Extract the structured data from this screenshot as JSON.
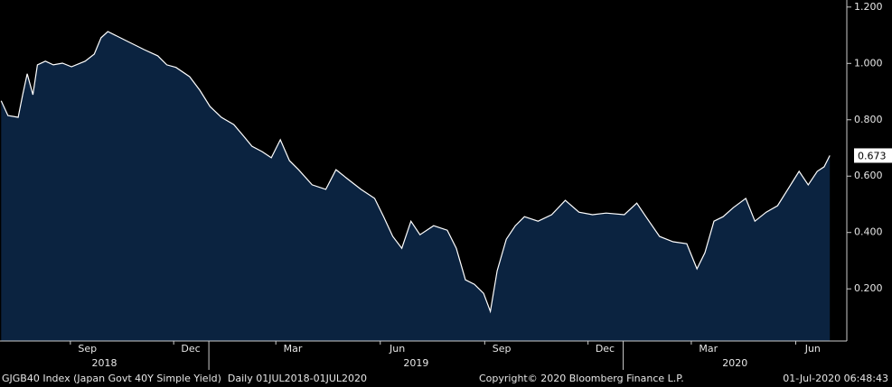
{
  "chart_data": {
    "type": "area",
    "series": [
      {
        "name": "GJGB40 Index",
        "color": "#ffffff",
        "fill": "#0b2340",
        "x": [
          "2018-07-02",
          "2018-07-08",
          "2018-07-17",
          "2018-07-21",
          "2018-07-25",
          "2018-07-30",
          "2018-08-03",
          "2018-08-10",
          "2018-08-17",
          "2018-08-25",
          "2018-09-02",
          "2018-09-14",
          "2018-09-22",
          "2018-09-28",
          "2018-10-04",
          "2018-10-12",
          "2018-10-20",
          "2018-10-28",
          "2018-11-05",
          "2018-11-17",
          "2018-11-25",
          "2018-12-03",
          "2018-12-15",
          "2018-12-24",
          "2019-01-02",
          "2019-01-12",
          "2019-01-23",
          "2019-01-31",
          "2019-02-08",
          "2019-02-17",
          "2019-02-25",
          "2019-03-05",
          "2019-03-13",
          "2019-03-21",
          "2019-04-02",
          "2019-04-14",
          "2019-04-23",
          "2019-05-03",
          "2019-05-15",
          "2019-05-27",
          "2019-06-04",
          "2019-06-12",
          "2019-06-20",
          "2019-06-28",
          "2019-07-06",
          "2019-07-18",
          "2019-07-30",
          "2019-08-07",
          "2019-08-15",
          "2019-08-23",
          "2019-08-31",
          "2019-09-06",
          "2019-09-12",
          "2019-09-20",
          "2019-09-28",
          "2019-10-06",
          "2019-10-18",
          "2019-10-30",
          "2019-11-11",
          "2019-11-23",
          "2019-12-05",
          "2019-12-17",
          "2020-01-02",
          "2020-01-13",
          "2020-01-21",
          "2020-02-02",
          "2020-02-14",
          "2020-02-26",
          "2020-03-06",
          "2020-03-13",
          "2020-03-21",
          "2020-03-29",
          "2020-04-07",
          "2020-04-18",
          "2020-04-26",
          "2020-05-06",
          "2020-05-16",
          "2020-05-25",
          "2020-06-04",
          "2020-06-12",
          "2020-06-20",
          "2020-06-26",
          "2020-07-01"
        ],
        "values": [
          0.867,
          0.815,
          0.809,
          0.889,
          0.963,
          0.889,
          0.995,
          1.008,
          0.995,
          1.001,
          0.988,
          1.008,
          1.033,
          1.091,
          1.113,
          1.097,
          1.081,
          1.065,
          1.049,
          1.027,
          0.995,
          0.986,
          0.953,
          0.905,
          0.847,
          0.809,
          0.783,
          0.745,
          0.706,
          0.687,
          0.665,
          0.729,
          0.655,
          0.623,
          0.569,
          0.553,
          0.623,
          0.591,
          0.553,
          0.521,
          0.456,
          0.386,
          0.344,
          0.44,
          0.392,
          0.424,
          0.408,
          0.344,
          0.232,
          0.216,
          0.184,
          0.12,
          0.264,
          0.376,
          0.424,
          0.456,
          0.44,
          0.463,
          0.514,
          0.472,
          0.463,
          0.469,
          0.463,
          0.504,
          0.456,
          0.386,
          0.367,
          0.36,
          0.271,
          0.328,
          0.44,
          0.456,
          0.488,
          0.521,
          0.44,
          0.472,
          0.495,
          0.553,
          0.617,
          0.569,
          0.617,
          0.633,
          0.673
        ]
      }
    ],
    "last_value_label": "0.673",
    "xlim": [
      "2018-07-01",
      "2020-07-16"
    ],
    "xticks": [
      {
        "value": "2018-09-01",
        "label": "Sep"
      },
      {
        "value": "2018-12-01",
        "label": "Dec"
      },
      {
        "value": "2019-03-01",
        "label": "Mar"
      },
      {
        "value": "2019-06-01",
        "label": "Jun"
      },
      {
        "value": "2019-09-01",
        "label": "Sep"
      },
      {
        "value": "2019-12-01",
        "label": "Dec"
      },
      {
        "value": "2020-03-01",
        "label": "Mar"
      },
      {
        "value": "2020-06-01",
        "label": "Jun"
      }
    ],
    "years": [
      {
        "value": "2018-01-01",
        "label": "2018"
      },
      {
        "value": "2019-01-01",
        "label": "2019"
      },
      {
        "value": "2020-01-01",
        "label": "2020"
      }
    ],
    "ylim": [
      0.015,
      1.225
    ],
    "yticks": [
      {
        "value": 0.2,
        "label": "0.200"
      },
      {
        "value": 0.4,
        "label": "0.400"
      },
      {
        "value": 0.6,
        "label": "0.600"
      },
      {
        "value": 0.8,
        "label": "0.800"
      },
      {
        "value": 1.0,
        "label": "1.000"
      },
      {
        "value": 1.2,
        "label": "1.200"
      }
    ],
    "footer_left": "GJGB40 Index (Japan Govt 40Y Simple Yield)  Daily 01JUL2018-01JUL2020",
    "footer_center": "Copyright© 2020 Bloomberg Finance L.P.",
    "footer_right": "01-Jul-2020 06:48:43"
  }
}
